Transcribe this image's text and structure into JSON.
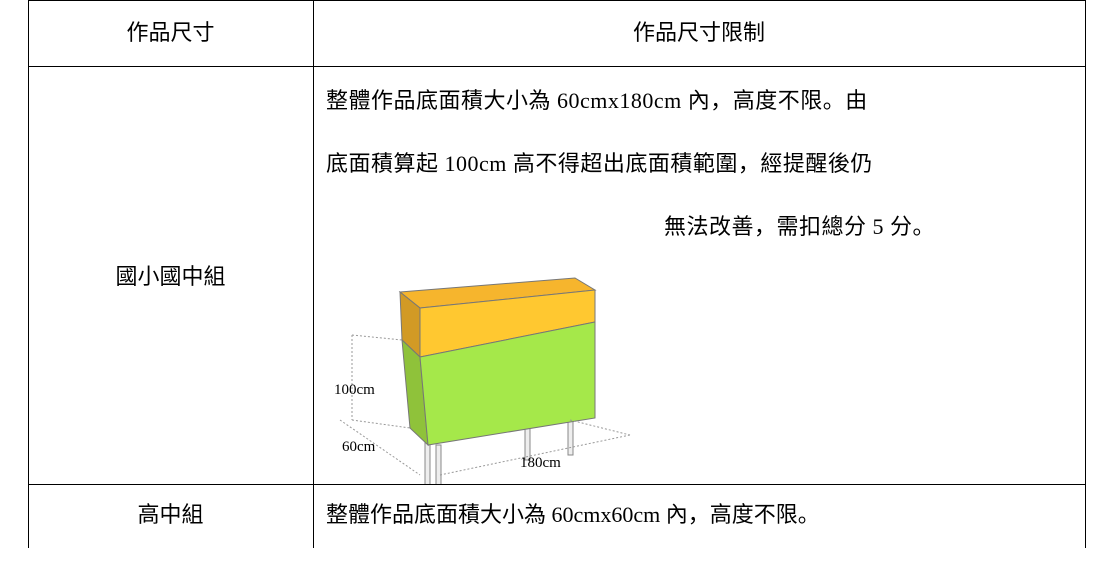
{
  "table": {
    "header": [
      "作品尺寸",
      "作品尺寸限制"
    ],
    "rows": [
      {
        "group": "國小國中組",
        "limit": [
          "整體作品底面積大小為 60cmx180cm 內，高度不限。由",
          "底面積算起 100cm 高不得超出底面積範圍，經提醒後仍",
          "無法改善，需扣總分 5 分。"
        ],
        "diagram": {
          "labels": [
            "100cm",
            "60cm",
            "180cm"
          ]
        }
      },
      {
        "group": "高中組",
        "limit": [
          "整體作品底面積大小為 60cmx60cm 內，高度不限。"
        ]
      }
    ]
  }
}
